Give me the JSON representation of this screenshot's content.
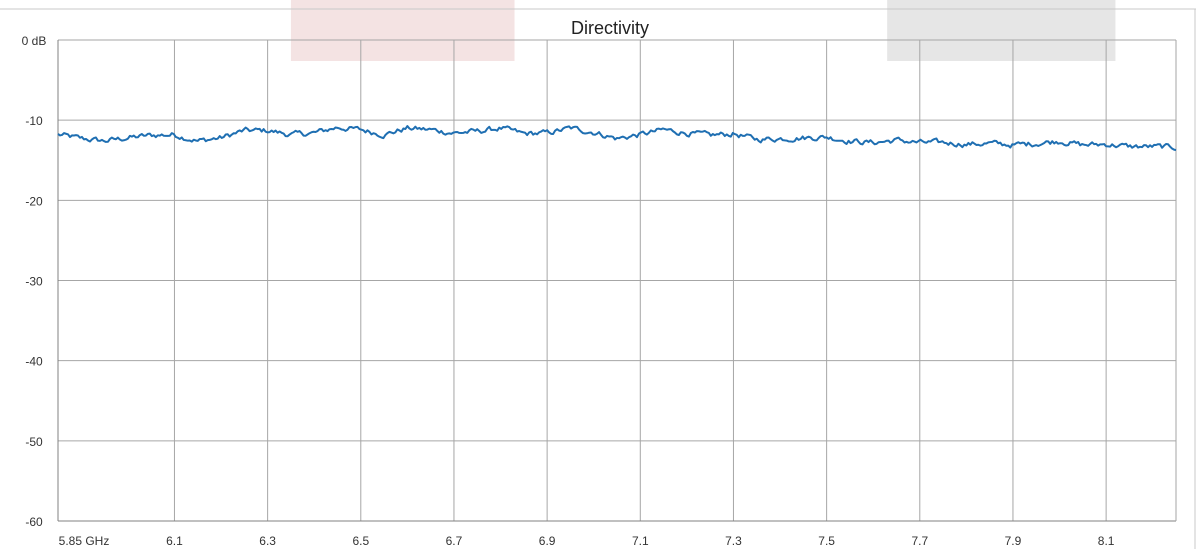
{
  "chart_data": {
    "type": "line",
    "title": "Directivity",
    "xlabel": "",
    "ylabel": "",
    "xlim": [
      5.85,
      8.25
    ],
    "ylim": [
      -60,
      0
    ],
    "x_ticks": [
      5.85,
      6.1,
      6.3,
      6.5,
      6.7,
      6.9,
      7.1,
      7.3,
      7.5,
      7.7,
      7.9,
      8.1
    ],
    "x_tick_labels": [
      "5.85 GHz",
      "6.1",
      "6.3",
      "6.5",
      "6.7",
      "6.9",
      "7.1",
      "7.3",
      "7.5",
      "7.7",
      "7.9",
      "8.1"
    ],
    "y_ticks": [
      0,
      -10,
      -20,
      -30,
      -40,
      -50,
      -60
    ],
    "y_tick_labels": [
      "0 dB",
      "-10",
      "-20",
      "-30",
      "-40",
      "-50",
      "-60"
    ],
    "grid": true,
    "highlight_bands": [
      {
        "x_range": [
          6.35,
          6.83
        ],
        "color": "#f4e3e3"
      },
      {
        "x_range": [
          7.63,
          8.12
        ],
        "color": "#e6e6e6"
      }
    ],
    "series": [
      {
        "color": "#1f6fb2",
        "x": [
          5.85,
          5.9,
          5.95,
          6.0,
          6.05,
          6.1,
          6.15,
          6.2,
          6.25,
          6.3,
          6.35,
          6.4,
          6.45,
          6.5,
          6.55,
          6.6,
          6.65,
          6.7,
          6.75,
          6.8,
          6.85,
          6.9,
          6.95,
          7.0,
          7.05,
          7.1,
          7.15,
          7.2,
          7.25,
          7.3,
          7.35,
          7.4,
          7.45,
          7.5,
          7.55,
          7.6,
          7.65,
          7.7,
          7.75,
          7.8,
          7.85,
          7.9,
          7.95,
          8.0,
          8.05,
          8.1,
          8.15,
          8.2,
          8.25
        ],
        "y": [
          -11.8,
          -12.3,
          -12.6,
          -12.2,
          -11.9,
          -11.8,
          -12.6,
          -12.2,
          -11.3,
          -11.3,
          -11.8,
          -11.6,
          -10.9,
          -11.2,
          -11.8,
          -11.0,
          -11.2,
          -11.6,
          -11.4,
          -11.0,
          -11.7,
          -11.6,
          -11.0,
          -11.5,
          -12.3,
          -11.8,
          -11.2,
          -11.6,
          -11.9,
          -11.7,
          -12.4,
          -12.3,
          -12.2,
          -12.1,
          -12.6,
          -12.8,
          -12.5,
          -12.8,
          -12.8,
          -13.0,
          -12.9,
          -13.1,
          -12.9,
          -12.6,
          -13.1,
          -13.0,
          -13.3,
          -13.3,
          -13.4
        ]
      }
    ]
  }
}
